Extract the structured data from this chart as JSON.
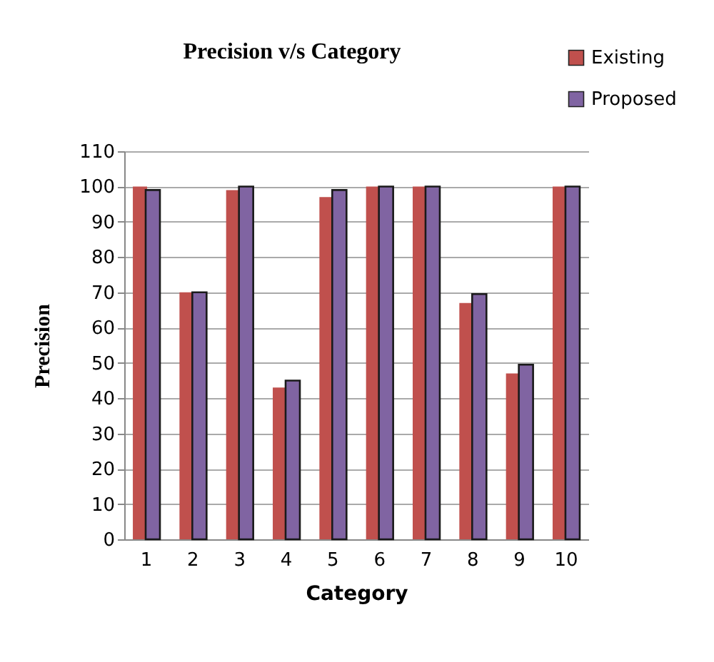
{
  "chart_data": {
    "type": "bar",
    "title": "Precision v/s Category",
    "xlabel": "Category",
    "ylabel": "Precision",
    "categories": [
      "1",
      "2",
      "3",
      "4",
      "5",
      "6",
      "7",
      "8",
      "9",
      "10"
    ],
    "series": [
      {
        "name": "Existing",
        "color": "#c0504d",
        "values": [
          100,
          70,
          99,
          43,
          97,
          100,
          100,
          67,
          47,
          100
        ]
      },
      {
        "name": "Proposed",
        "color": "#8064a2",
        "values": [
          99,
          70,
          100,
          45,
          99,
          100,
          100,
          69.5,
          49.5,
          100
        ]
      }
    ],
    "ylim": [
      0,
      110
    ],
    "yticks": [
      0,
      10,
      20,
      30,
      40,
      50,
      60,
      70,
      80,
      90,
      100,
      110
    ],
    "grid": "y",
    "legend": "top right"
  }
}
